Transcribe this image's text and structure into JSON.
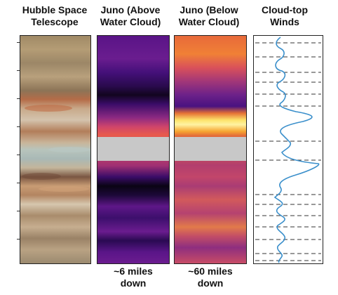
{
  "headers": {
    "hubble": [
      "Hubble Space",
      "Telescope"
    ],
    "juno_above": [
      "Juno (Above",
      "Water Cloud)"
    ],
    "juno_below": [
      "Juno (Below",
      "Water Cloud)"
    ],
    "winds": [
      "Cloud-top",
      "Winds"
    ]
  },
  "footers": {
    "juno_above": [
      "~6 miles",
      "down"
    ],
    "juno_below": [
      "~60 miles",
      "down"
    ]
  },
  "colors": {
    "gap": "#c8c8c8",
    "wind_line": "#3a8fcb",
    "dash": "#333333"
  }
}
